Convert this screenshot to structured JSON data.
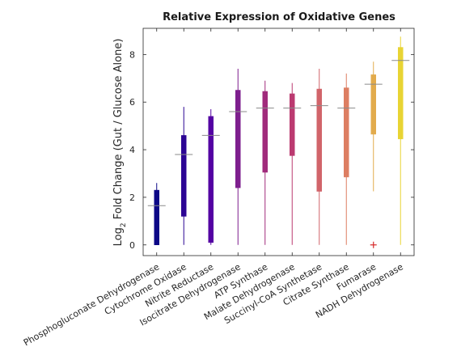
{
  "chart_data": {
    "type": "box",
    "title": "Relative Expression of Oxidative Genes",
    "ylabel_prefix": "Log",
    "ylabel_sub": "2",
    "ylabel_rest": " Fold Change (Gut / Glucose Alone)",
    "xlabel": "",
    "ylim": [
      -0.45,
      9.1
    ],
    "yticks": [
      0,
      2,
      4,
      6,
      8
    ],
    "ytick_labels": [
      "0",
      "2",
      "4",
      "6",
      "8"
    ],
    "grid": false,
    "categories": [
      {
        "name": "Phosphogluconate Dehydrogenase",
        "color": "#0d0887",
        "whisker_low": 0,
        "q1": 0,
        "median": 1.65,
        "q3": 2.3,
        "whisker_high": 2.6,
        "outliers": []
      },
      {
        "name": "Cytochrome Oxidase",
        "color": "#2c0594",
        "whisker_low": 0,
        "q1": 1.2,
        "median": 3.8,
        "q3": 4.6,
        "whisker_high": 5.8,
        "outliers": []
      },
      {
        "name": "Nitrite Reductase",
        "color": "#5402a3",
        "whisker_low": 0,
        "q1": 0.1,
        "median": 4.6,
        "q3": 5.4,
        "whisker_high": 5.7,
        "outliers": []
      },
      {
        "name": "Isocitrate Dehydrogenase",
        "color": "#7e1f8e",
        "whisker_low": 0,
        "q1": 2.4,
        "median": 5.6,
        "q3": 6.5,
        "whisker_high": 7.4,
        "outliers": []
      },
      {
        "name": "ATP Synthase",
        "color": "#a12b7c",
        "whisker_low": 0,
        "q1": 3.05,
        "median": 5.75,
        "q3": 6.45,
        "whisker_high": 6.9,
        "outliers": []
      },
      {
        "name": "Malate Dehydrogenase",
        "color": "#bb3a70",
        "whisker_low": 0,
        "q1": 3.75,
        "median": 5.75,
        "q3": 6.35,
        "whisker_high": 6.8,
        "outliers": []
      },
      {
        "name": "Succinyl-CoA Synthetase",
        "color": "#d1646a",
        "whisker_low": 0,
        "q1": 2.25,
        "median": 5.85,
        "q3": 6.55,
        "whisker_high": 7.4,
        "outliers": []
      },
      {
        "name": "Citrate Synthase",
        "color": "#dd7e62",
        "whisker_low": 0,
        "q1": 2.85,
        "median": 5.75,
        "q3": 6.6,
        "whisker_high": 7.2,
        "outliers": []
      },
      {
        "name": "Fumarase",
        "color": "#e2ab4c",
        "whisker_low": 2.25,
        "q1": 4.65,
        "median": 6.75,
        "q3": 7.15,
        "whisker_high": 7.7,
        "outliers": [
          0
        ]
      },
      {
        "name": "NADH Dehydrogenase",
        "color": "#e8d434",
        "whisker_low": 0,
        "q1": 4.45,
        "median": 7.75,
        "q3": 8.3,
        "whisker_high": 8.75,
        "outliers": []
      }
    ],
    "outlier_color": "#d62728",
    "median_color": "#8a8a8a"
  }
}
